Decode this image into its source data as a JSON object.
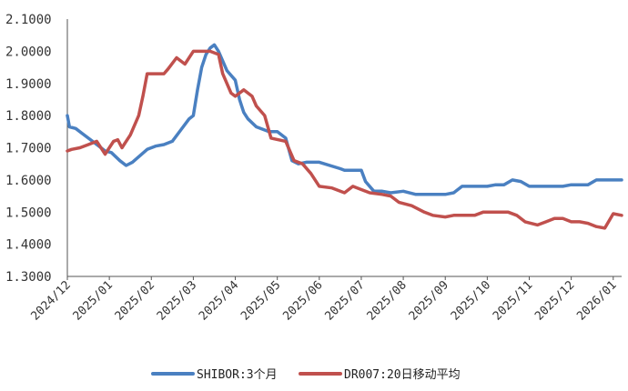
{
  "chart_data": {
    "type": "line",
    "title": "",
    "xlabel": "",
    "ylabel": "",
    "ylim": [
      1.3,
      2.1
    ],
    "yticks": [
      "1.3000",
      "1.4000",
      "1.5000",
      "1.6000",
      "1.7000",
      "1.8000",
      "1.9000",
      "2.0000",
      "2.1000"
    ],
    "xlim": [
      0,
      13.2
    ],
    "categories": [
      "2024/12",
      "2025/01",
      "2025/02",
      "2025/03",
      "2025/04",
      "2025/05",
      "2025/06",
      "2025/07",
      "2025/08",
      "2025/09",
      "2025/10",
      "2025/11",
      "2025/12",
      "2026/01"
    ],
    "grid": false,
    "legend_position": "bottom",
    "series": [
      {
        "name": "SHIBOR:3个月",
        "color": "#4a80c1",
        "x": [
          0.0,
          0.05,
          0.2,
          0.35,
          0.6,
          0.9,
          1.05,
          1.25,
          1.4,
          1.55,
          1.9,
          2.1,
          2.3,
          2.5,
          2.7,
          2.9,
          3.0,
          3.1,
          3.2,
          3.3,
          3.4,
          3.5,
          3.6,
          3.8,
          4.0,
          4.1,
          4.2,
          4.3,
          4.5,
          4.8,
          5.0,
          5.2,
          5.35,
          5.5,
          5.7,
          6.0,
          6.5,
          6.6,
          7.0,
          7.1,
          7.3,
          7.5,
          7.7,
          8.0,
          8.3,
          8.5,
          8.8,
          9.0,
          9.2,
          9.4,
          9.6,
          9.8,
          10.0,
          10.2,
          10.4,
          10.6,
          10.8,
          11.0,
          11.2,
          11.4,
          11.6,
          11.8,
          12.0,
          12.2,
          12.4,
          12.6,
          12.8,
          13.0,
          13.2
        ],
        "values": [
          1.8,
          1.765,
          1.76,
          1.745,
          1.72,
          1.69,
          1.685,
          1.66,
          1.645,
          1.655,
          1.695,
          1.705,
          1.71,
          1.72,
          1.755,
          1.79,
          1.8,
          1.88,
          1.95,
          1.99,
          2.01,
          2.02,
          2.0,
          1.94,
          1.91,
          1.85,
          1.81,
          1.79,
          1.765,
          1.75,
          1.75,
          1.73,
          1.66,
          1.65,
          1.655,
          1.655,
          1.635,
          1.63,
          1.63,
          1.595,
          1.565,
          1.565,
          1.56,
          1.565,
          1.555,
          1.555,
          1.555,
          1.555,
          1.56,
          1.58,
          1.58,
          1.58,
          1.58,
          1.585,
          1.585,
          1.6,
          1.595,
          1.58,
          1.58,
          1.58,
          1.58,
          1.58,
          1.585,
          1.585,
          1.585,
          1.6,
          1.6,
          1.6,
          1.6
        ]
      },
      {
        "name": "DR007:20日移动平均",
        "color": "#c0504d",
        "x": [
          0.0,
          0.1,
          0.3,
          0.5,
          0.7,
          0.9,
          1.0,
          1.1,
          1.2,
          1.3,
          1.4,
          1.5,
          1.7,
          1.8,
          1.9,
          2.1,
          2.3,
          2.4,
          2.6,
          2.8,
          3.0,
          3.2,
          3.4,
          3.6,
          3.7,
          3.9,
          4.0,
          4.2,
          4.4,
          4.5,
          4.7,
          4.85,
          5.2,
          5.4,
          5.6,
          5.8,
          6.0,
          6.3,
          6.6,
          6.8,
          7.0,
          7.2,
          7.5,
          7.7,
          7.9,
          8.2,
          8.5,
          8.7,
          9.0,
          9.2,
          9.5,
          9.7,
          9.9,
          10.2,
          10.5,
          10.7,
          10.9,
          11.2,
          11.4,
          11.6,
          11.8,
          12.0,
          12.2,
          12.4,
          12.6,
          12.8,
          13.0,
          13.2
        ],
        "values": [
          1.69,
          1.695,
          1.7,
          1.71,
          1.72,
          1.68,
          1.7,
          1.72,
          1.725,
          1.7,
          1.72,
          1.74,
          1.8,
          1.86,
          1.93,
          1.93,
          1.93,
          1.945,
          1.98,
          1.96,
          2.0,
          2.0,
          2.0,
          1.99,
          1.93,
          1.87,
          1.86,
          1.88,
          1.86,
          1.83,
          1.8,
          1.73,
          1.72,
          1.66,
          1.65,
          1.62,
          1.58,
          1.575,
          1.56,
          1.58,
          1.57,
          1.56,
          1.555,
          1.55,
          1.53,
          1.52,
          1.5,
          1.49,
          1.485,
          1.49,
          1.49,
          1.49,
          1.5,
          1.5,
          1.5,
          1.49,
          1.47,
          1.46,
          1.47,
          1.48,
          1.48,
          1.47,
          1.47,
          1.465,
          1.455,
          1.45,
          1.495,
          1.49
        ]
      }
    ]
  }
}
